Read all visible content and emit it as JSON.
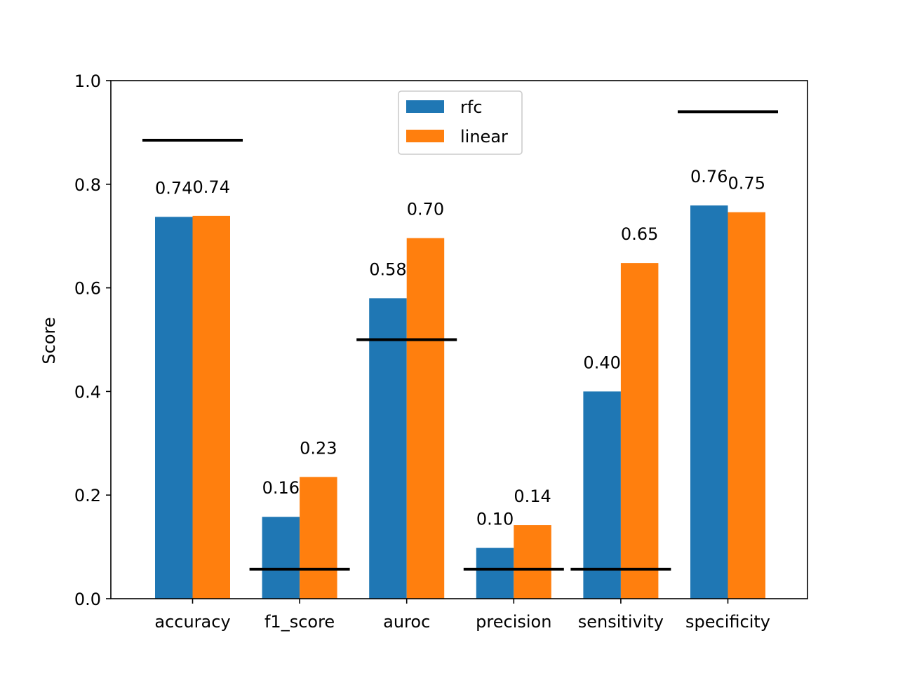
{
  "chart_data": {
    "type": "bar",
    "categories": [
      "accuracy",
      "f1_score",
      "auroc",
      "precision",
      "sensitivity",
      "specificity"
    ],
    "series": [
      {
        "name": "rfc",
        "color": "#1f77b4",
        "values": [
          0.737,
          0.158,
          0.58,
          0.098,
          0.4,
          0.759
        ],
        "labels": [
          "0.74",
          "0.16",
          "0.58",
          "0.10",
          "0.40",
          "0.76"
        ]
      },
      {
        "name": "linear",
        "color": "#ff7f0e",
        "values": [
          0.739,
          0.235,
          0.696,
          0.142,
          0.648,
          0.746
        ],
        "labels": [
          "0.74",
          "0.23",
          "0.70",
          "0.14",
          "0.65",
          "0.75"
        ]
      }
    ],
    "baselines": [
      0.885,
      0.057,
      0.5,
      0.057,
      0.057,
      0.94
    ],
    "baseline_color": "#000000",
    "title": "",
    "xlabel": "",
    "ylabel": "Score",
    "ylim": [
      0,
      1.0
    ],
    "yticks": [
      "0.0",
      "0.2",
      "0.4",
      "0.6",
      "0.8",
      "1.0"
    ],
    "grid": false,
    "legend_position": "upper-center"
  }
}
